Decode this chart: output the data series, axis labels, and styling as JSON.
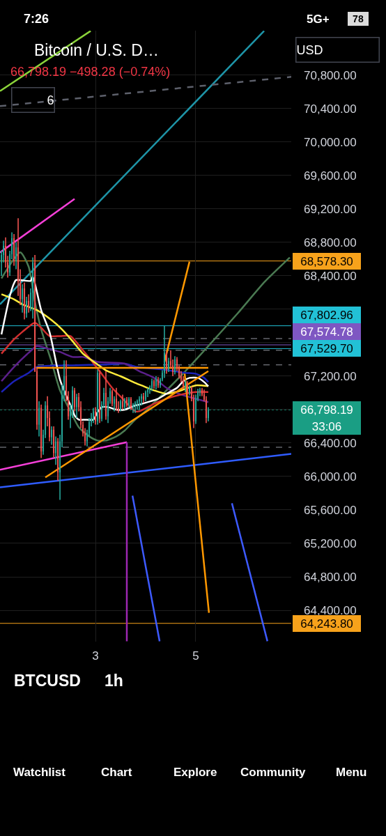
{
  "chart_data": {
    "type": "candlestick",
    "title": "Bitcoin / U.S. D…",
    "subtitle": "66,798.19 −498.28 (−0.74%)",
    "x": [
      1.125,
      1.167,
      1.208,
      1.25,
      1.292,
      1.333,
      1.375,
      1.417,
      1.458,
      1.5,
      1.542,
      1.583,
      1.625,
      1.667,
      1.708,
      1.75,
      1.792,
      1.833,
      1.875,
      1.917,
      1.958,
      2,
      2.042,
      2.083,
      2.125,
      2.167,
      2.208,
      2.25,
      2.292,
      2.333,
      2.375,
      2.417,
      2.458,
      2.5,
      2.542,
      2.583,
      2.625,
      2.667,
      2.708,
      2.75,
      2.792,
      2.833,
      2.875,
      2.917,
      2.958,
      3,
      3.042,
      3.083,
      3.125,
      3.167,
      3.208,
      3.25,
      3.292,
      3.333,
      3.375,
      3.417,
      3.458,
      3.5,
      3.542,
      3.583,
      3.625,
      3.667,
      3.708,
      3.75,
      3.792,
      3.833,
      3.875,
      3.917,
      3.958,
      4,
      4.042,
      4.083,
      4.125,
      4.167,
      4.208,
      4.25,
      4.292,
      4.333,
      4.375,
      4.417,
      4.458,
      4.5,
      4.542,
      4.583,
      4.625,
      4.667,
      4.708,
      4.75,
      4.792,
      4.833,
      4.875,
      4.917,
      4.958,
      5,
      5.042,
      5.083,
      5.125,
      5.167,
      5.208,
      5.25
    ],
    "ohlc": [
      [
        68560,
        68700,
        68400,
        68650
      ],
      [
        68650,
        68820,
        68560,
        68760
      ],
      [
        68760,
        68860,
        68500,
        68560
      ],
      [
        68560,
        68640,
        68380,
        68440
      ],
      [
        68440,
        68700,
        68400,
        68660
      ],
      [
        68660,
        68920,
        68600,
        68850
      ],
      [
        68850,
        68900,
        68520,
        68580
      ],
      [
        68580,
        68800,
        68480,
        68740
      ],
      [
        68740,
        69090,
        68160,
        68330
      ],
      [
        68330,
        68480,
        68050,
        68120
      ],
      [
        68120,
        68300,
        67960,
        68250
      ],
      [
        68250,
        68320,
        67880,
        67950
      ],
      [
        67950,
        68150,
        67900,
        68100
      ],
      [
        68100,
        68180,
        67960,
        68020
      ],
      [
        68020,
        68250,
        67980,
        68200
      ],
      [
        68200,
        68620,
        67890,
        68560
      ],
      [
        68560,
        68650,
        67250,
        67260
      ],
      [
        67260,
        67300,
        66560,
        66620
      ],
      [
        66620,
        66900,
        66480,
        66820
      ],
      [
        66820,
        66860,
        66220,
        66300
      ],
      [
        66300,
        66560,
        66260,
        66500
      ],
      [
        66500,
        66900,
        66460,
        66850
      ],
      [
        66850,
        66960,
        66600,
        66700
      ],
      [
        66700,
        66780,
        66420,
        66470
      ],
      [
        66470,
        66600,
        66380,
        66560
      ],
      [
        66560,
        66600,
        66230,
        66280
      ],
      [
        66280,
        66480,
        66140,
        66420
      ],
      [
        66420,
        66460,
        65950,
        66050
      ],
      [
        66050,
        66500,
        65720,
        66420
      ],
      [
        66420,
        67100,
        66350,
        66980
      ],
      [
        66980,
        67390,
        66900,
        67200
      ],
      [
        67200,
        67390,
        66900,
        66950
      ],
      [
        66950,
        67020,
        66680,
        66720
      ],
      [
        66720,
        66860,
        66580,
        66800
      ],
      [
        66800,
        67080,
        66700,
        67030
      ],
      [
        67030,
        67060,
        66780,
        66830
      ],
      [
        66830,
        66990,
        66700,
        66950
      ],
      [
        66950,
        67000,
        66780,
        66830
      ],
      [
        66830,
        66900,
        66580,
        66620
      ],
      [
        66620,
        66660,
        66480,
        66520
      ],
      [
        66520,
        66580,
        66370,
        66420
      ],
      [
        66420,
        66560,
        66360,
        66520
      ],
      [
        66520,
        66700,
        66480,
        66650
      ],
      [
        66650,
        66760,
        66600,
        66700
      ],
      [
        66700,
        66820,
        66640,
        66780
      ],
      [
        66780,
        66830,
        66620,
        66660
      ],
      [
        66660,
        67280,
        66620,
        67240
      ],
      [
        67240,
        67270,
        66640,
        66690
      ],
      [
        66690,
        66900,
        66660,
        66860
      ],
      [
        66860,
        67060,
        66820,
        67000
      ],
      [
        67000,
        67260,
        66680,
        66720
      ],
      [
        66720,
        66950,
        66640,
        66900
      ],
      [
        66900,
        67060,
        66870,
        67020
      ],
      [
        67020,
        67040,
        66840,
        66870
      ],
      [
        66870,
        66960,
        66780,
        66930
      ],
      [
        66930,
        67060,
        66790,
        66820
      ],
      [
        66820,
        66900,
        66760,
        66800
      ],
      [
        66800,
        66920,
        66780,
        66900
      ],
      [
        66900,
        66980,
        66800,
        66830
      ],
      [
        66830,
        66940,
        66800,
        66920
      ],
      [
        66920,
        66950,
        66830,
        66850
      ],
      [
        66850,
        66950,
        66820,
        66930
      ],
      [
        66930,
        66950,
        66800,
        66830
      ],
      [
        66830,
        66880,
        66760,
        66860
      ],
      [
        66860,
        66900,
        66760,
        66880
      ],
      [
        66880,
        66920,
        66800,
        66900
      ],
      [
        66900,
        66960,
        66800,
        66930
      ],
      [
        66930,
        66990,
        66850,
        66960
      ],
      [
        66960,
        67000,
        66880,
        66920
      ],
      [
        66920,
        67030,
        66900,
        67010
      ],
      [
        67010,
        67060,
        66950,
        67040
      ],
      [
        67040,
        67090,
        66990,
        67060
      ],
      [
        67060,
        67170,
        67020,
        67140
      ],
      [
        67140,
        67160,
        67050,
        67080
      ],
      [
        67080,
        67200,
        67040,
        67160
      ],
      [
        67160,
        67190,
        67060,
        67090
      ],
      [
        67090,
        67180,
        67060,
        67160
      ],
      [
        67160,
        67270,
        67140,
        67240
      ],
      [
        67240,
        67800,
        67180,
        67480
      ],
      [
        67480,
        67500,
        67230,
        67280
      ],
      [
        67280,
        67420,
        67250,
        67380
      ],
      [
        67380,
        67510,
        67300,
        67330
      ],
      [
        67330,
        67400,
        67200,
        67250
      ],
      [
        67250,
        67440,
        67220,
        67400
      ],
      [
        67400,
        67430,
        67260,
        67290
      ],
      [
        67290,
        67330,
        67170,
        67200
      ],
      [
        67200,
        67260,
        67130,
        67160
      ],
      [
        67160,
        67200,
        67050,
        67080
      ],
      [
        67080,
        67150,
        67010,
        67120
      ],
      [
        67120,
        67140,
        66980,
        67000
      ],
      [
        67000,
        67090,
        66970,
        67060
      ],
      [
        67060,
        67080,
        66900,
        66930
      ],
      [
        66930,
        66980,
        66580,
        66660
      ],
      [
        66660,
        66980,
        66630,
        66930
      ],
      [
        66930,
        67050,
        66900,
        67010
      ],
      [
        67010,
        67060,
        66960,
        67040
      ],
      [
        67040,
        67060,
        66960,
        66980
      ],
      [
        66980,
        67040,
        66900,
        66920
      ],
      [
        66920,
        66960,
        66640,
        66700
      ],
      [
        66700,
        66830,
        66660,
        66798.19
      ]
    ],
    "colors": [
      "#26a69a",
      "#26a69a",
      "#ef5350",
      "#ef5350",
      "#26a69a",
      "#26a69a",
      "#ef5350",
      "#26a69a",
      "#ef5350",
      "#ef5350",
      "#26a69a",
      "#ef5350",
      "#26a69a",
      "#ef5350",
      "#26a69a",
      "#26a69a",
      "#ef5350",
      "#ef5350",
      "#26a69a",
      "#ef5350",
      "#26a69a",
      "#26a69a",
      "#ef5350",
      "#ef5350",
      "#26a69a",
      "#ef5350",
      "#26a69a",
      "#ef5350",
      "#26a69a",
      "#26a69a",
      "#26a69a",
      "#ef5350",
      "#ef5350",
      "#26a69a",
      "#26a69a",
      "#ef5350",
      "#26a69a",
      "#ef5350",
      "#ef5350",
      "#ef5350",
      "#ef5350",
      "#26a69a",
      "#26a69a",
      "#26a69a",
      "#26a69a",
      "#ef5350",
      "#26a69a",
      "#ef5350",
      "#26a69a",
      "#26a69a",
      "#ef5350",
      "#26a69a",
      "#26a69a",
      "#ef5350",
      "#26a69a",
      "#ef5350",
      "#ef5350",
      "#26a69a",
      "#ef5350",
      "#26a69a",
      "#ef5350",
      "#26a69a",
      "#ef5350",
      "#26a69a",
      "#26a69a",
      "#26a69a",
      "#26a69a",
      "#26a69a",
      "#ef5350",
      "#26a69a",
      "#26a69a",
      "#26a69a",
      "#26a69a",
      "#ef5350",
      "#26a69a",
      "#ef5350",
      "#26a69a",
      "#26a69a",
      "#26a69a",
      "#ef5350",
      "#26a69a",
      "#ef5350",
      "#ef5350",
      "#26a69a",
      "#ef5350",
      "#ef5350",
      "#ef5350",
      "#ef5350",
      "#26a69a",
      "#ef5350",
      "#26a69a",
      "#ef5350",
      "#ef5350",
      "#26a69a",
      "#26a69a",
      "#26a69a",
      "#ef5350",
      "#ef5350",
      "#ef5350",
      "#26a69a"
    ],
    "series": [
      {
        "type": "line",
        "color": "#2f5cff",
        "x": [
          1.096,
          6.904
        ],
        "values": [
          65870,
          66270
        ]
      },
      {
        "type": "line",
        "color": "#f53fd8",
        "x": [
          1.096,
          3.625
        ],
        "values": [
          66080,
          66410
        ]
      },
      {
        "type": "line",
        "color": "#9c27b0",
        "x": [
          3.625,
          3.625
        ],
        "values": [
          66410,
          64030
        ]
      },
      {
        "type": "line",
        "color": "#f53fd8",
        "x": [
          1.096,
          2.583
        ],
        "values": [
          68680,
          69320
        ]
      },
      {
        "type": "line",
        "color": "#1e95a8",
        "x": [
          1.096,
          6.363
        ],
        "values": [
          68060,
          71330
        ]
      },
      {
        "type": "line",
        "color": "#8bd43a",
        "x": [
          1.096,
          2.904
        ],
        "values": [
          70610,
          71330
        ]
      },
      {
        "type": "line",
        "color": "#5d606b",
        "line_style": "dashed",
        "x": [
          1.096,
          6.904
        ],
        "values": [
          70430,
          70780
        ]
      },
      {
        "type": "line",
        "color": "#4a7a52",
        "x": [
          1.125,
          1.5,
          1.667,
          1.792,
          1.917,
          2.125,
          2.292,
          2.5,
          2.667,
          2.875,
          3.042,
          3.208,
          3.417,
          3.583,
          3.792,
          3.958,
          4.333,
          4.792,
          5.25,
          5.833,
          6.375,
          6.875
        ],
        "values": [
          68370,
          68680,
          68510,
          68090,
          67760,
          67370,
          67030,
          66780,
          66590,
          66480,
          66430,
          66430,
          66480,
          66550,
          66680,
          66760,
          66980,
          67260,
          67560,
          67950,
          68330,
          68620
        ]
      },
      {
        "type": "line",
        "color": "#1c22b8",
        "x": [
          1.125,
          1.375,
          1.667,
          1.833,
          2.542,
          3.208,
          3.583,
          3.833,
          4.333,
          4.792,
          5,
          5.167,
          5.25
        ],
        "values": [
          67010,
          67140,
          67240,
          67310,
          67330,
          67340,
          67350,
          67310,
          67280,
          67240,
          67230,
          67180,
          67130
        ]
      },
      {
        "type": "line",
        "color": "#5b1f8a",
        "x": [
          1.125,
          1.375,
          1.667,
          1.833,
          2.042,
          2.292,
          2.542,
          2.75,
          3.042,
          3.583,
          3.875,
          4.167,
          4.417,
          4.708,
          5,
          5.25
        ],
        "values": [
          67140,
          67310,
          67480,
          67560,
          67530,
          67490,
          67430,
          67430,
          67370,
          67350,
          67260,
          67180,
          67060,
          66980,
          66930,
          66890
        ]
      },
      {
        "type": "line",
        "color": "#d32f2f",
        "x": [
          1.125,
          1.375,
          1.542,
          1.792,
          1.917,
          2.083,
          2.292,
          2.5,
          2.75,
          3.083,
          3.333,
          3.542,
          3.792,
          3.875,
          4.167,
          4.417,
          4.708,
          5,
          5.25
        ],
        "values": [
          67470,
          67640,
          67730,
          67840,
          67780,
          67680,
          67680,
          67680,
          67510,
          67260,
          67060,
          66930,
          66780,
          66780,
          66870,
          66930,
          66980,
          67010,
          67010
        ]
      },
      {
        "type": "line",
        "color": "#ffeb3b",
        "x": [
          1.125,
          1.375,
          1.542,
          1.833,
          2.125,
          2.333,
          2.542,
          2.75,
          3.042,
          3.208,
          3.5,
          3.792,
          3.958,
          4.167,
          4.417,
          4.708,
          5,
          5.25
        ],
        "values": [
          68180,
          68120,
          68060,
          67990,
          67870,
          67760,
          67620,
          67470,
          67340,
          67270,
          67200,
          67120,
          67080,
          67030,
          66990,
          67030,
          67090,
          67080
        ]
      },
      {
        "type": "line",
        "color": "#ffffff",
        "x": [
          1.125,
          1.292,
          1.375,
          1.417,
          1.708,
          1.75,
          1.917,
          2.083,
          2.292,
          2.458,
          2.542,
          2.583,
          2.667,
          2.792,
          2.958,
          3.042,
          3.125,
          3.25,
          3.417,
          3.583,
          3.792,
          3.875,
          4.042,
          4.25,
          4.417,
          4.625,
          4.75,
          4.875,
          5.042,
          5.167,
          5.25
        ],
        "values": [
          67700,
          68160,
          68310,
          68350,
          68340,
          68390,
          67990,
          67730,
          67160,
          66910,
          66800,
          66730,
          66680,
          66680,
          66680,
          66770,
          66830,
          66830,
          66800,
          66800,
          66850,
          66860,
          66890,
          66930,
          66990,
          67060,
          67140,
          67180,
          67180,
          67130,
          67080
        ]
      },
      {
        "type": "line",
        "color": "#ff9800",
        "x": [
          1.821,
          5.25
        ],
        "values": [
          67300,
          67300
        ]
      },
      {
        "type": "line",
        "color": "#ff9800",
        "x": [
          2,
          5.25
        ],
        "values": [
          65990,
          67260
        ]
      },
      {
        "type": "line",
        "color": "#ff9800",
        "x": [
          4.375,
          4.875
        ],
        "values": [
          67370,
          68570
        ]
      },
      {
        "type": "line",
        "color": "#ff9800",
        "x": [
          4.779,
          5.263
        ],
        "values": [
          67230,
          64370
        ]
      },
      {
        "type": "line",
        "color": "#3d5afe",
        "x": [
          3.738,
          4.279
        ],
        "values": [
          65770,
          64030
        ]
      },
      {
        "type": "line",
        "color": "#3d5afe",
        "x": [
          5.721,
          6.429
        ],
        "values": [
          65680,
          64030
        ]
      }
    ],
    "ref_lines": [
      {
        "axis": "y",
        "value": 68578.3,
        "label": "68,578.30",
        "color": "#f7a21b"
      },
      {
        "axis": "y",
        "value": 67802.96,
        "label": "67,802.96",
        "color": "#22c1d6"
      },
      {
        "axis": "y",
        "value": 67574.78,
        "label": "67,574.78",
        "color": "#7e57c2"
      },
      {
        "axis": "y",
        "value": 67529.7,
        "label": "67,529.70",
        "color": "#22c1d6"
      },
      {
        "axis": "y",
        "value": 66798.19,
        "label": "66,798.19",
        "color": "#1a9e84",
        "line_style": "dotted"
      },
      {
        "axis": "y",
        "value": 64243.8,
        "label": "64,243.80",
        "color": "#f7a21b"
      },
      {
        "axis": "y",
        "value": 67650,
        "color": "#9598a1",
        "line_style": "dashed"
      },
      {
        "axis": "y",
        "value": 67510,
        "color": "#9598a1",
        "line_style": "dashed"
      },
      {
        "axis": "y",
        "value": 67335,
        "color": "#9598a1",
        "line_style": "dashed"
      },
      {
        "axis": "y",
        "value": 66350,
        "color": "#9598a1",
        "line_style": "dashed"
      }
    ],
    "xlim": [
      1.096,
      6.904
    ],
    "xticks": [
      3,
      5
    ],
    "ylim": [
      64025,
      71333
    ],
    "yticks": [
      {
        "value": 64400,
        "label": "64,400.00"
      },
      {
        "value": 64800,
        "label": "64,800.00"
      },
      {
        "value": 65200,
        "label": "65,200.00"
      },
      {
        "value": 65600,
        "label": "65,600.00"
      },
      {
        "value": 66000,
        "label": "66,000.00"
      },
      {
        "value": 66400,
        "label": "66,400.00"
      },
      {
        "value": 66800,
        "label": null
      },
      {
        "value": 67200,
        "label": "67,200.00"
      },
      {
        "value": 67600,
        "label": null
      },
      {
        "value": 68000,
        "label": null
      },
      {
        "value": 68400,
        "label": "68,400.00"
      },
      {
        "value": 68800,
        "label": "68,800.00"
      },
      {
        "value": 69200,
        "label": "69,200.00"
      },
      {
        "value": 69600,
        "label": "69,600.00"
      },
      {
        "value": 70000,
        "label": "70,000.00"
      },
      {
        "value": 70400,
        "label": "70,400.00"
      },
      {
        "value": 70800,
        "label": "70,800.00"
      }
    ],
    "grid": true,
    "annotations": [
      "7:26",
      "5G+",
      "78",
      "USD",
      "6",
      "33:06",
      "BTCUSD",
      "1h",
      "Watchlist",
      "Chart",
      "Explore",
      "Community",
      "Menu"
    ]
  }
}
